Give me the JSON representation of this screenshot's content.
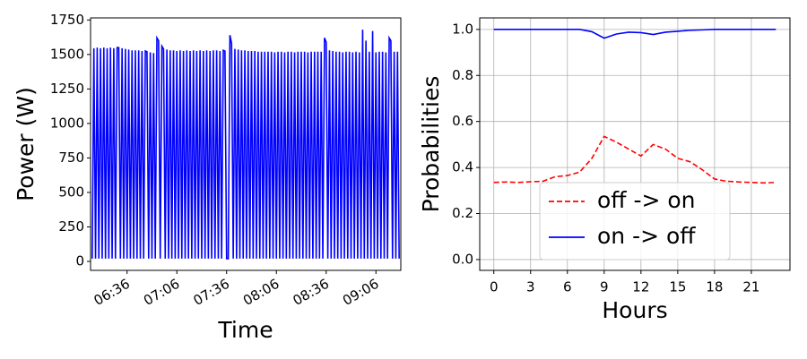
{
  "chart_data": [
    {
      "type": "line",
      "ylabel": "Power (W)",
      "xlabel": "Time",
      "x": [
        "06:15",
        "06:16",
        "06:17",
        "06:18",
        "06:19",
        "06:20",
        "06:21",
        "06:22",
        "06:23",
        "06:24",
        "06:25",
        "06:26",
        "06:27",
        "06:28",
        "06:29",
        "06:30",
        "06:31",
        "06:32",
        "06:33",
        "06:34",
        "06:35",
        "06:36",
        "06:37",
        "06:38",
        "06:39",
        "06:40",
        "06:41",
        "06:42",
        "06:43",
        "06:44",
        "06:45",
        "06:46",
        "06:47",
        "06:48",
        "06:49",
        "06:50",
        "06:51",
        "06:52",
        "06:53",
        "06:54",
        "06:55",
        "06:56",
        "06:57",
        "06:58",
        "06:59",
        "07:00",
        "07:01",
        "07:02",
        "07:03",
        "07:04",
        "07:05",
        "07:06",
        "07:07",
        "07:08",
        "07:09",
        "07:10",
        "07:11",
        "07:12",
        "07:13",
        "07:14",
        "07:15",
        "07:16",
        "07:17",
        "07:18",
        "07:19",
        "07:20",
        "07:21",
        "07:22",
        "07:23",
        "07:24",
        "07:25",
        "07:26",
        "07:27",
        "07:28",
        "07:29",
        "07:30",
        "07:31",
        "07:32",
        "07:33",
        "07:34",
        "07:35",
        "07:36",
        "07:37",
        "07:38",
        "07:39",
        "07:40",
        "07:41",
        "07:42",
        "07:43",
        "07:44",
        "07:45",
        "07:46",
        "07:47",
        "07:48",
        "07:49",
        "07:50",
        "07:51",
        "07:52",
        "07:53",
        "07:54",
        "07:55",
        "07:56",
        "07:57",
        "07:58",
        "07:59",
        "08:00",
        "08:01",
        "08:02",
        "08:03",
        "08:04",
        "08:05",
        "08:06",
        "08:07",
        "08:08",
        "08:09",
        "08:10",
        "08:11",
        "08:12",
        "08:13",
        "08:14",
        "08:15",
        "08:16",
        "08:17",
        "08:18",
        "08:19",
        "08:20",
        "08:21",
        "08:22",
        "08:23",
        "08:24",
        "08:25",
        "08:26",
        "08:27",
        "08:28",
        "08:29",
        "08:30",
        "08:31",
        "08:32",
        "08:33",
        "08:34",
        "08:35",
        "08:36",
        "08:37",
        "08:38",
        "08:39",
        "08:40",
        "08:41",
        "08:42",
        "08:43",
        "08:44",
        "08:45",
        "08:46",
        "08:47",
        "08:48",
        "08:49",
        "08:50",
        "08:51",
        "08:52",
        "08:53",
        "08:54",
        "08:55",
        "08:56",
        "08:57",
        "08:58",
        "08:59",
        "09:00",
        "09:01",
        "09:02",
        "09:03",
        "09:04",
        "09:05",
        "09:06",
        "09:07",
        "09:08",
        "09:09",
        "09:10",
        "09:11",
        "09:12",
        "09:13",
        "09:14",
        "09:15",
        "09:16",
        "09:17",
        "09:18",
        "09:19",
        "09:20"
      ],
      "series": [
        {
          "color": "#0000ff",
          "values": [
            20,
            1545,
            20,
            1550,
            20,
            1545,
            20,
            1550,
            20,
            1545,
            20,
            1550,
            20,
            1545,
            20,
            1550,
            1550,
            20,
            1545,
            20,
            1540,
            20,
            1535,
            20,
            1530,
            20,
            1530,
            20,
            1530,
            20,
            1525,
            20,
            1525,
            1520,
            20,
            1515,
            20,
            1510,
            20,
            1620,
            1600,
            20,
            1560,
            1540,
            20,
            1535,
            20,
            1530,
            20,
            1530,
            20,
            1525,
            20,
            1530,
            20,
            1525,
            20,
            1530,
            20,
            1525,
            20,
            1530,
            20,
            1525,
            20,
            1530,
            20,
            1525,
            20,
            1530,
            20,
            1525,
            20,
            1530,
            20,
            1530,
            20,
            1525,
            20,
            1530,
            1525,
            20,
            20,
            1640,
            1580,
            20,
            1540,
            20,
            1535,
            20,
            1530,
            20,
            1530,
            20,
            1525,
            20,
            1525,
            20,
            1525,
            20,
            1520,
            20,
            1520,
            20,
            1520,
            20,
            1520,
            20,
            1520,
            20,
            1515,
            20,
            1520,
            20,
            1520,
            20,
            1515,
            20,
            1520,
            20,
            1520,
            20,
            1515,
            20,
            1520,
            20,
            1520,
            20,
            1520,
            20,
            1515,
            20,
            1520,
            20,
            1520,
            20,
            1520,
            20,
            1520,
            20,
            1620,
            1590,
            20,
            1530,
            20,
            1525,
            20,
            1520,
            20,
            1520,
            20,
            1515,
            20,
            1520,
            20,
            1520,
            20,
            1515,
            20,
            1520,
            20,
            1515,
            20,
            1680,
            20,
            1600,
            20,
            1520,
            20,
            1670,
            20,
            1515,
            20,
            1520,
            20,
            1520,
            20,
            1515,
            20,
            1620,
            1600,
            20,
            1520,
            20,
            1520,
            20
          ]
        }
      ],
      "xlim": [
        "06:14",
        "09:21"
      ],
      "xticks": [
        "06:36",
        "07:06",
        "07:36",
        "08:06",
        "08:36",
        "09:06"
      ],
      "ylim": [
        -65,
        1765
      ],
      "yticks": [
        0,
        250,
        500,
        750,
        1000,
        1250,
        1500,
        1750
      ],
      "grid": false
    },
    {
      "type": "line",
      "ylabel": "Probabilities",
      "xlabel": "Hours",
      "x": [
        0,
        1,
        2,
        3,
        4,
        5,
        6,
        7,
        8,
        9,
        10,
        11,
        12,
        13,
        14,
        15,
        16,
        17,
        18,
        19,
        20,
        21,
        22,
        23
      ],
      "series": [
        {
          "name": "off -> on",
          "color": "#ff0000",
          "linestyle": "dashed",
          "values": [
            0.335,
            0.337,
            0.335,
            0.338,
            0.34,
            0.36,
            0.365,
            0.38,
            0.44,
            0.535,
            0.51,
            0.48,
            0.45,
            0.5,
            0.48,
            0.44,
            0.425,
            0.39,
            0.35,
            0.34,
            0.337,
            0.335,
            0.333,
            0.335
          ]
        },
        {
          "name": "on -> off",
          "color": "#0000ff",
          "linestyle": "solid",
          "values": [
            1,
            1,
            1,
            1,
            1,
            1,
            1,
            1,
            0.99,
            0.962,
            0.98,
            0.988,
            0.986,
            0.978,
            0.988,
            0.992,
            0.996,
            0.998,
            1,
            1,
            1,
            1,
            1,
            1
          ]
        }
      ],
      "xlim": [
        -1.15,
        24.15
      ],
      "xticks": [
        0,
        3,
        6,
        9,
        12,
        15,
        18,
        21
      ],
      "ylim": [
        -0.047,
        1.05
      ],
      "yticks": [
        {
          "value": 0,
          "label": "0.0"
        },
        {
          "value": 0.2,
          "label": "0.2"
        },
        {
          "value": 0.4,
          "label": "0.4"
        },
        {
          "value": 0.6,
          "label": "0.6"
        },
        {
          "value": 0.8,
          "label": "0.8"
        },
        {
          "value": 1,
          "label": "1.0"
        }
      ],
      "grid": true,
      "legend": "lower center"
    }
  ]
}
